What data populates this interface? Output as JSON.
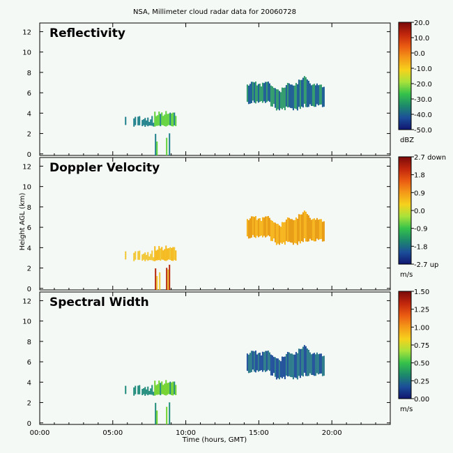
{
  "title": "NSA, Millimeter cloud radar data for 20060728",
  "xlabel": "Time (hours, GMT)",
  "ylabel": "Height AGL (km)",
  "x_ticks": [
    "00:00",
    "05:00",
    "10:00",
    "15:00",
    "20:00"
  ],
  "y_ticks": [
    "0",
    "2",
    "4",
    "6",
    "8",
    "10",
    "12"
  ],
  "panels": [
    {
      "title": "Reflectivity",
      "colorbar_ticks": [
        "20.0",
        "10.0",
        "0.0",
        "-10.0",
        "-20.0",
        "-30.0",
        "-40.0",
        "-50.0"
      ],
      "colorbar_unit": "dBZ",
      "colors": {
        "low_cloud_core": "#5fd23a",
        "low_cloud_edge": "#1c7f8a",
        "high_cloud_body": "#2f9a6a",
        "high_cloud_edge": "#1a5c93"
      }
    },
    {
      "title": "Doppler Velocity",
      "colorbar_ticks": [
        "2.7 down",
        "1.8",
        "0.9",
        "0.0",
        "-0.9",
        "-1.8",
        "-2.7 up"
      ],
      "colorbar_unit": "m/s",
      "colors": {
        "low_cloud_core": "#f5b816",
        "low_cloud_edge": "#f2c630",
        "high_cloud_body": "#f6b41a",
        "high_cloud_edge": "#e89b10",
        "fall_streak": "#b52308"
      }
    },
    {
      "title": "Spectral Width",
      "colorbar_ticks": [
        "1.50",
        "1.25",
        "1.00",
        "0.75",
        "0.50",
        "0.25",
        "0.00"
      ],
      "colorbar_unit": "m/s",
      "colors": {
        "low_cloud_core": "#6fd22a",
        "low_cloud_edge": "#1e8a7a",
        "high_cloud_body": "#1f4e9a",
        "high_cloud_edge": "#2a7a8a"
      }
    }
  ],
  "chart_data": {
    "type": "heatmap",
    "title": "NSA, Millimeter cloud radar data for 20060728",
    "xlabel": "Time (hours, GMT)",
    "ylabel": "Height AGL (km)",
    "xlim": [
      "00:00",
      "24:00"
    ],
    "ylim": [
      0,
      13
    ],
    "panels": [
      "Reflectivity",
      "Doppler Velocity",
      "Spectral Width"
    ],
    "echoes": [
      {
        "feature": "low cloud layer",
        "time_start": "05:50",
        "time_end": "09:20",
        "height_base_km": 2.8,
        "height_top_km": 4.4
      },
      {
        "feature": "precipitation shafts",
        "time_start": "06:50",
        "time_end": "09:00",
        "height_base_km": 0.0,
        "height_top_km": 2.8
      },
      {
        "feature": "upper cloud layer",
        "time_start": "14:10",
        "time_end": "19:30",
        "height_base_km": 4.5,
        "height_top_km": 7.5
      }
    ],
    "colorbar_ranges": {
      "Reflectivity": {
        "min": -50.0,
        "max": 20.0,
        "unit": "dBZ"
      },
      "Doppler Velocity": {
        "min": -2.7,
        "max": 2.7,
        "unit": "m/s"
      },
      "Spectral Width": {
        "min": 0.0,
        "max": 1.5,
        "unit": "m/s"
      }
    },
    "grid": false
  }
}
